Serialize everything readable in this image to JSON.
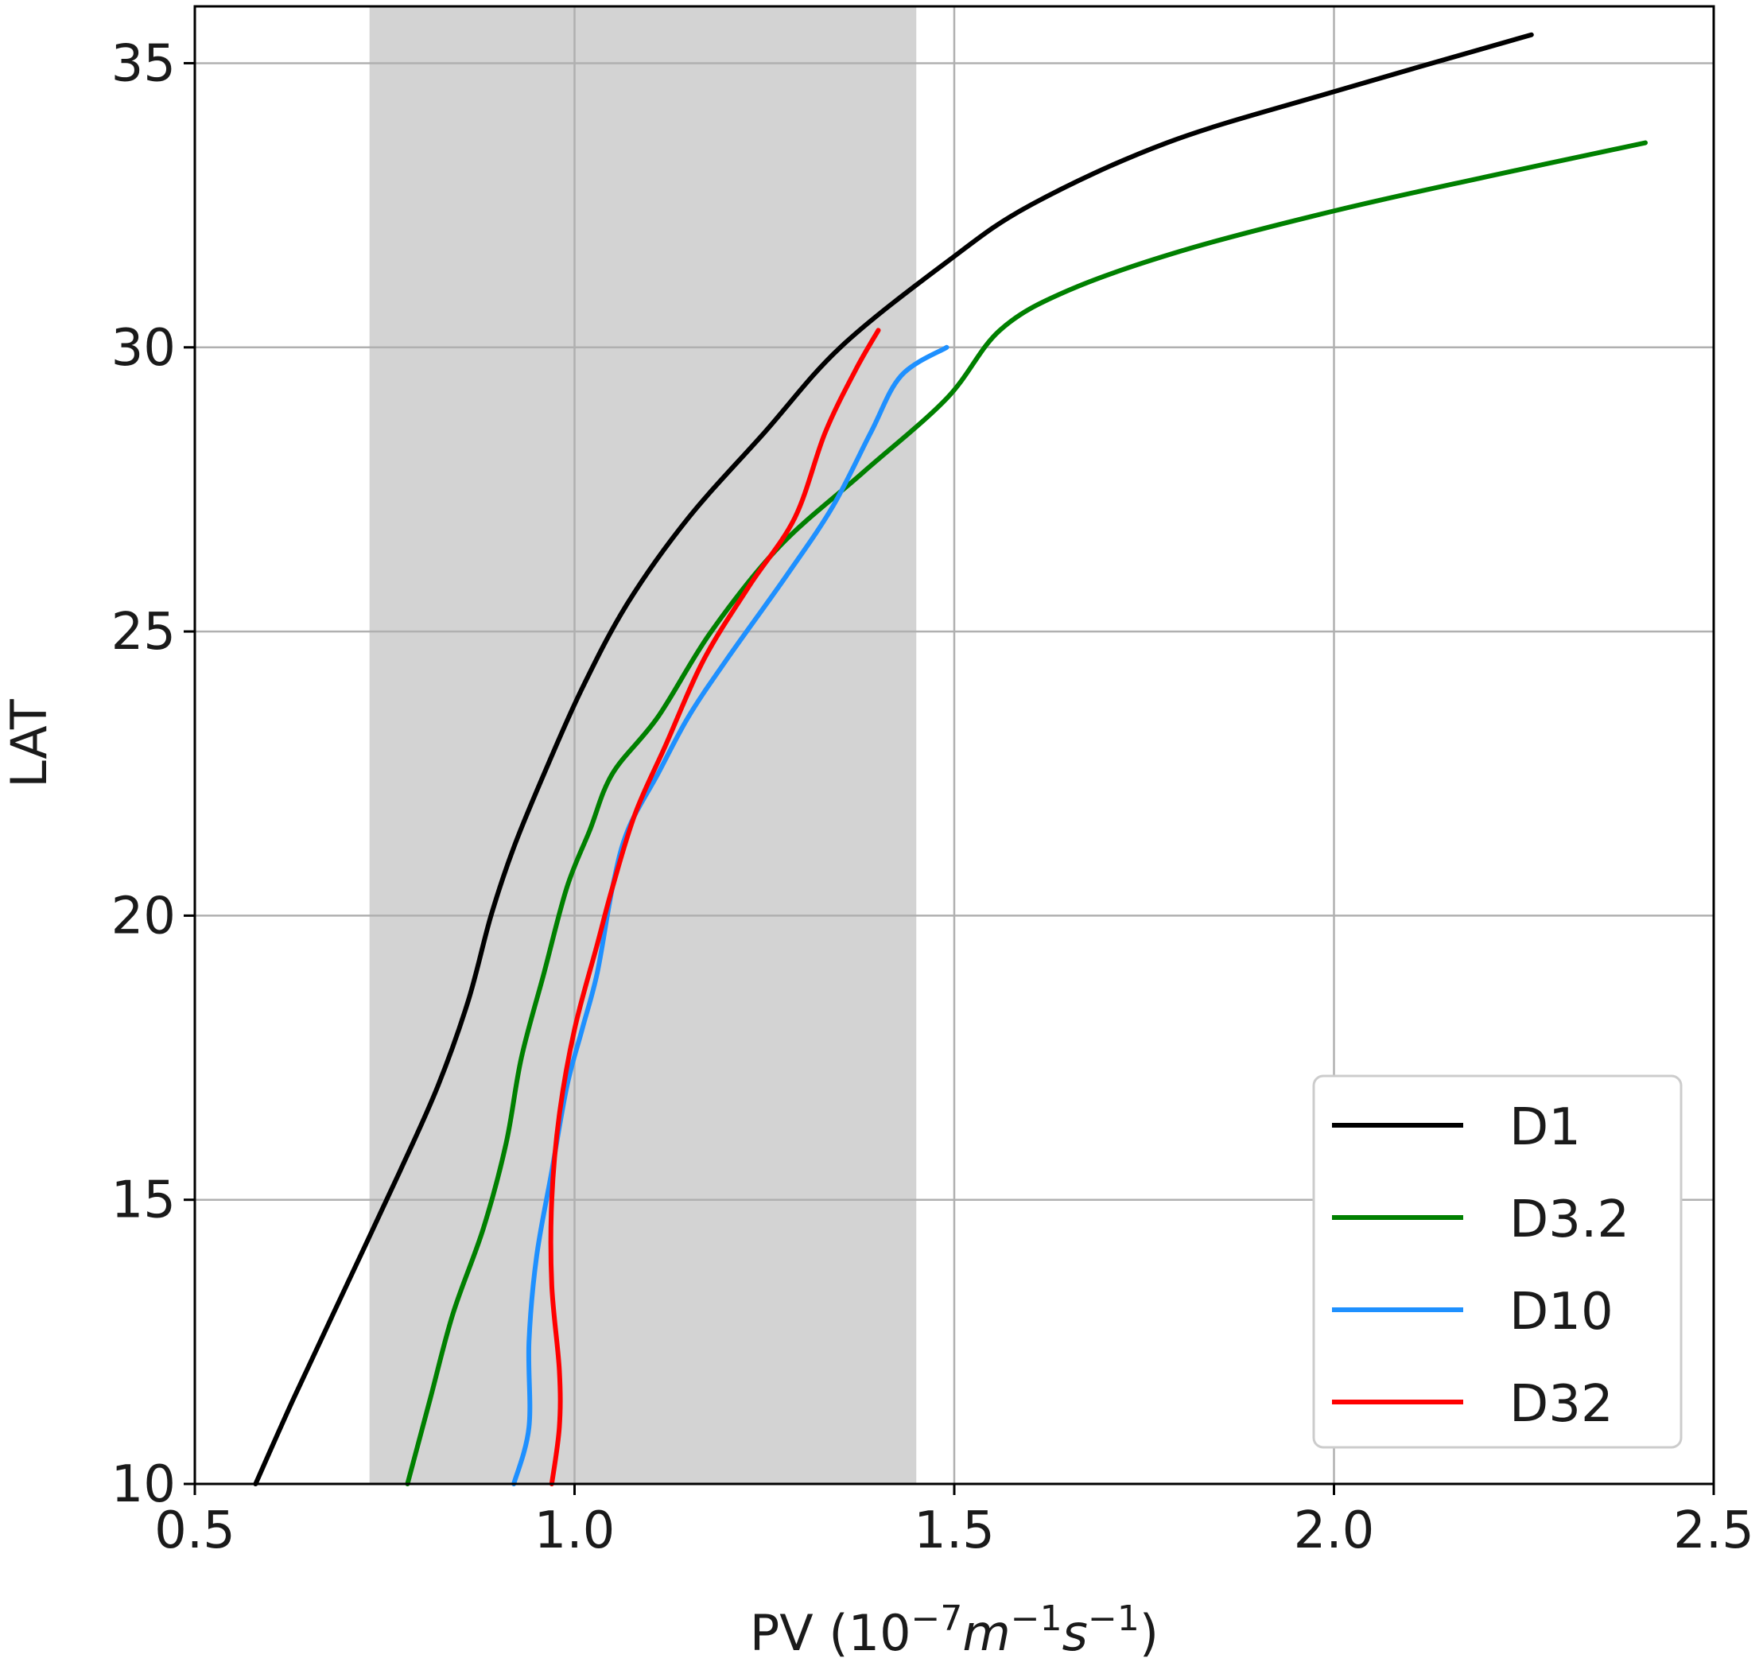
{
  "chart_data": {
    "type": "line",
    "xlabel": {
      "prefix": "PV (10",
      "exp1": "−7",
      "unit_m": "m",
      "exp2": "−1",
      "unit_s": "s",
      "exp3": "−1",
      "suffix": ")"
    },
    "ylabel": "LAT",
    "xlim": [
      0.5,
      2.5
    ],
    "ylim": [
      10,
      36
    ],
    "x_ticks": [
      0.5,
      1.0,
      1.5,
      2.0,
      2.5
    ],
    "x_tick_labels": [
      "0.5",
      "1.0",
      "1.5",
      "2.0",
      "2.5"
    ],
    "y_ticks": [
      10,
      15,
      20,
      25,
      30,
      35
    ],
    "y_tick_labels": [
      "10",
      "15",
      "20",
      "25",
      "30",
      "35"
    ],
    "grid": true,
    "shaded_band": {
      "x_range": [
        0.73,
        1.45
      ],
      "color": "#d3d3d3"
    },
    "legend_position": "lower-right",
    "series": [
      {
        "name": "D1",
        "color": "#000000",
        "points": [
          [
            0.58,
            10
          ],
          [
            0.63,
            11.5
          ],
          [
            0.7,
            13.5
          ],
          [
            0.77,
            15.5
          ],
          [
            0.82,
            17
          ],
          [
            0.86,
            18.5
          ],
          [
            0.89,
            20
          ],
          [
            0.92,
            21.2
          ],
          [
            0.96,
            22.5
          ],
          [
            1.01,
            24
          ],
          [
            1.07,
            25.5
          ],
          [
            1.15,
            27
          ],
          [
            1.25,
            28.5
          ],
          [
            1.35,
            30
          ],
          [
            1.49,
            31.5
          ],
          [
            1.6,
            32.5
          ],
          [
            1.78,
            33.6
          ],
          [
            2.0,
            34.5
          ],
          [
            2.26,
            35.5
          ]
        ]
      },
      {
        "name": "D3.2",
        "color": "#008000",
        "points": [
          [
            0.78,
            10
          ],
          [
            0.81,
            11.5
          ],
          [
            0.84,
            13
          ],
          [
            0.88,
            14.5
          ],
          [
            0.91,
            16
          ],
          [
            0.93,
            17.5
          ],
          [
            0.96,
            19
          ],
          [
            0.99,
            20.5
          ],
          [
            1.02,
            21.5
          ],
          [
            1.05,
            22.5
          ],
          [
            1.11,
            23.5
          ],
          [
            1.18,
            25
          ],
          [
            1.27,
            26.5
          ],
          [
            1.38,
            27.8
          ],
          [
            1.49,
            29.1
          ],
          [
            1.56,
            30.3
          ],
          [
            1.65,
            31
          ],
          [
            1.8,
            31.7
          ],
          [
            2.0,
            32.4
          ],
          [
            2.2,
            33
          ],
          [
            2.41,
            33.6
          ]
        ]
      },
      {
        "name": "D10",
        "color": "#1e90ff",
        "points": [
          [
            0.92,
            10
          ],
          [
            0.94,
            11
          ],
          [
            0.94,
            12.5
          ],
          [
            0.95,
            14
          ],
          [
            0.97,
            15.5
          ],
          [
            0.99,
            17
          ],
          [
            1.01,
            18
          ],
          [
            1.03,
            19
          ],
          [
            1.05,
            20.5
          ],
          [
            1.07,
            21.5
          ],
          [
            1.11,
            22.5
          ],
          [
            1.15,
            23.5
          ],
          [
            1.2,
            24.5
          ],
          [
            1.28,
            26
          ],
          [
            1.34,
            27.2
          ],
          [
            1.39,
            28.5
          ],
          [
            1.43,
            29.5
          ],
          [
            1.49,
            30
          ]
        ]
      },
      {
        "name": "D32",
        "color": "#ff0000",
        "points": [
          [
            0.97,
            10
          ],
          [
            0.98,
            11
          ],
          [
            0.98,
            12
          ],
          [
            0.97,
            13.5
          ],
          [
            0.97,
            15
          ],
          [
            0.98,
            16.5
          ],
          [
            1.0,
            18
          ],
          [
            1.03,
            19.5
          ],
          [
            1.05,
            20.5
          ],
          [
            1.08,
            21.8
          ],
          [
            1.12,
            23
          ],
          [
            1.17,
            24.5
          ],
          [
            1.23,
            25.8
          ],
          [
            1.29,
            27
          ],
          [
            1.33,
            28.5
          ],
          [
            1.37,
            29.6
          ],
          [
            1.4,
            30.3
          ]
        ]
      }
    ]
  }
}
